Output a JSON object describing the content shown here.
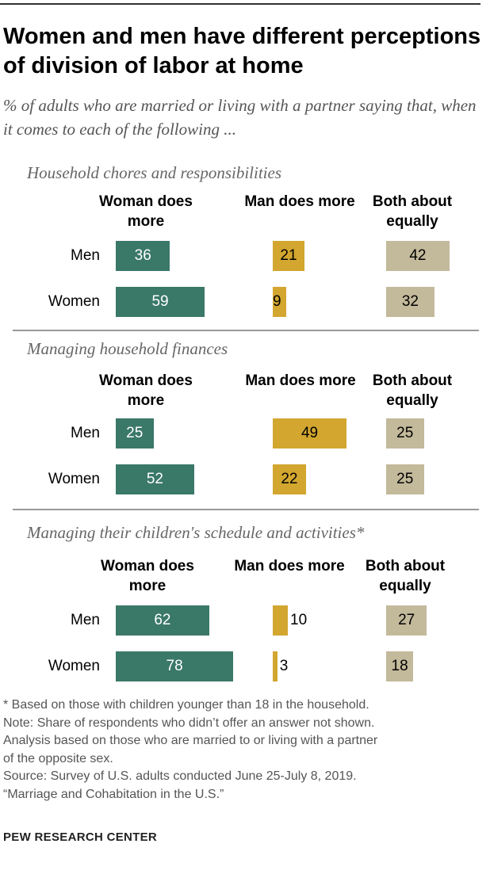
{
  "title": "Women and men have different perceptions of division of labor at home",
  "subtitle": "% of adults who are married or living with a partner saying that, when it comes to each of the following ...",
  "colors": {
    "woman_does_more": "#3a7868",
    "man_does_more": "#d2a62f",
    "both_equally": "#c3b99b"
  },
  "chart_data": {
    "type": "bar",
    "orientation": "horizontal",
    "categories": [
      "Men",
      "Women"
    ],
    "series_labels": [
      "Woman does more",
      "Man does more",
      "Both about equally"
    ],
    "panels": [
      {
        "title": "Household chores and responsibilities",
        "series": [
          {
            "name": "Woman does more",
            "values": [
              36,
              59
            ]
          },
          {
            "name": "Man does more",
            "values": [
              21,
              9
            ]
          },
          {
            "name": "Both about equally",
            "values": [
              42,
              32
            ]
          }
        ]
      },
      {
        "title": "Managing household finances",
        "series": [
          {
            "name": "Woman does more",
            "values": [
              25,
              52
            ]
          },
          {
            "name": "Man does more",
            "values": [
              49,
              22
            ]
          },
          {
            "name": "Both about equally",
            "values": [
              25,
              25
            ]
          }
        ]
      },
      {
        "title": "Managing their children's schedule and activities*",
        "series": [
          {
            "name": "Woman does more",
            "values": [
              62,
              78
            ]
          },
          {
            "name": "Man does more",
            "values": [
              10,
              3
            ]
          },
          {
            "name": "Both about equally",
            "values": [
              27,
              18
            ]
          }
        ]
      }
    ]
  },
  "notes": [
    "* Based on those with children younger than 18 in the household.",
    "Note: Share of respondents who didn’t offer an answer not shown.",
    "Analysis based on those who are married to or living with a partner",
    "of the opposite sex.",
    "Source: Survey of U.S. adults conducted June 25-July 8, 2019.",
    "“Marriage and Cohabitation in the U.S.”"
  ],
  "logo": "PEW RESEARCH CENTER"
}
